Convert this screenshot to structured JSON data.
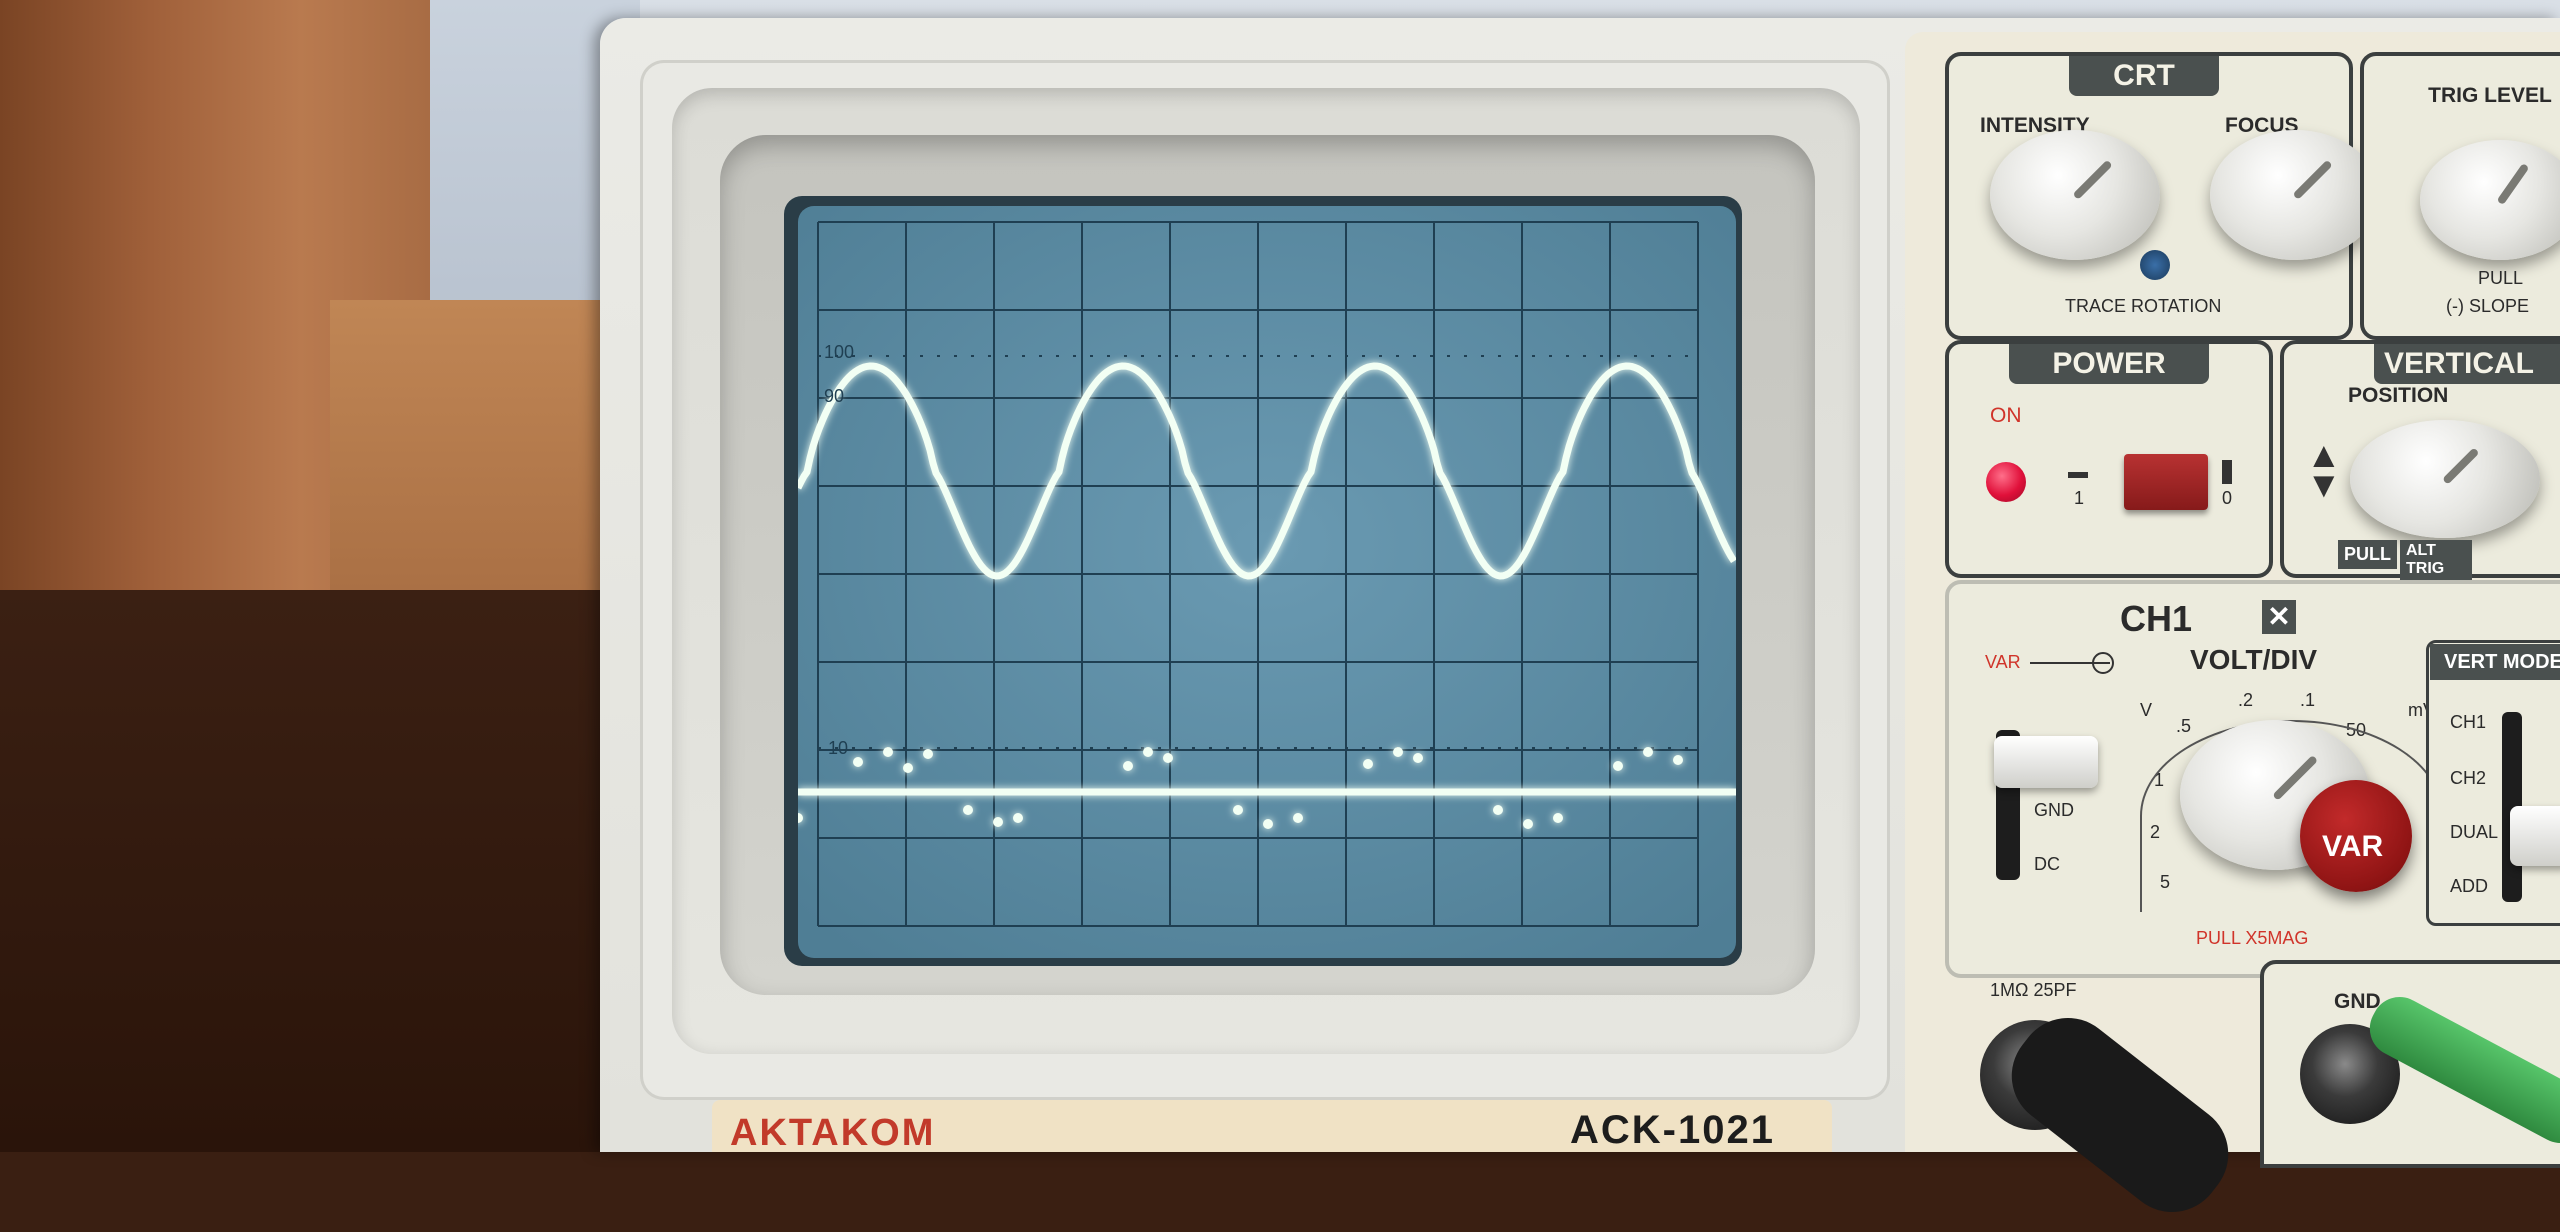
{
  "colors": {
    "screen_bg": "#5f8ea6",
    "grid": "#1f3f52",
    "trace": "#f2fff4",
    "trace_glow": "#7dffb0"
  },
  "screen": {
    "label_100": "100",
    "label_90": "90",
    "label_10": "10"
  },
  "crt": {
    "title": "CRT",
    "intensity": "INTENSITY",
    "focus": "FOCUS",
    "trace_rotation": "TRACE ROTATION",
    "trig_level": "TRIG LEVEL",
    "pull_slope": "PULL",
    "slope": "(-) SLOPE"
  },
  "power": {
    "title": "POWER",
    "on": "ON",
    "off_symbol": "1",
    "on_symbol": "0"
  },
  "vertical": {
    "title": "VERTICAL",
    "position": "POSITION",
    "pull": "PULL",
    "alt_trig": "ALT TRIG"
  },
  "ch1": {
    "title": "CH1",
    "var": "VAR",
    "volt_div": "VOLT/DIV",
    "v": "V",
    "mv": "mV",
    "scale": [
      ".5",
      ".2",
      ".1",
      "50",
      "1",
      "2",
      "5"
    ],
    "gnd": "GND",
    "dc": "DC",
    "pull_x5mag": "PULL X5MAG",
    "var_knob": "VAR",
    "impedance": "1MΩ  25PF"
  },
  "vert_mode": {
    "title": "VERT MODE",
    "items": [
      "CH1",
      "CH2",
      "DUAL",
      "ADD"
    ]
  },
  "gnd_terminal": "GND",
  "brand": {
    "logo": "AKTAKOM",
    "model": "ACK-1021"
  }
}
